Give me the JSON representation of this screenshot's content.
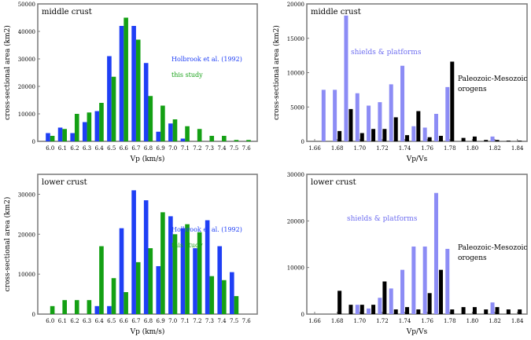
{
  "chart_data": [
    {
      "type": "bar",
      "panel_title": "middle crust",
      "xlabel": "Vp (km/s)",
      "ylabel": "cross-sectional area (km2)",
      "ylim": [
        0,
        50000
      ],
      "yticks": [
        "0",
        "10000",
        "20000",
        "30000",
        "40000",
        "50000"
      ],
      "categories": [
        "6.0",
        "6.1",
        "6.2",
        "6.3",
        "6.4",
        "6.5",
        "6.6",
        "6.7",
        "6.8",
        "6.9",
        "7.0",
        "7.1",
        "7.2",
        "7.3",
        "7.4",
        "7.5",
        "7.6"
      ],
      "series": [
        {
          "name": "Holbrook et al. (1992)",
          "color": "#1f3ff5",
          "values": [
            3000,
            5000,
            3000,
            7000,
            11000,
            31000,
            42000,
            42000,
            28500,
            3500,
            6500,
            1000,
            0,
            0,
            0,
            0,
            0
          ]
        },
        {
          "name": "this study",
          "color": "#14a014",
          "values": [
            2000,
            4500,
            10000,
            10500,
            14000,
            23500,
            45000,
            37000,
            16500,
            13000,
            8000,
            5500,
            4500,
            2000,
            2000,
            500,
            500
          ]
        }
      ]
    },
    {
      "type": "bar",
      "panel_title": "middle crust",
      "xlabel": "Vp/Vs",
      "ylabel": "cross-sectional area (km2)",
      "ylim": [
        0,
        20000
      ],
      "yticks": [
        "0",
        "5000",
        "10000",
        "15000",
        "20000"
      ],
      "xtick_labels": [
        "1.66",
        "1.68",
        "1.70",
        "1.72",
        "1.74",
        "1.76",
        "1.78",
        "1.80",
        "1.82",
        "1.84"
      ],
      "xrange": [
        1.66,
        1.85
      ],
      "annotations": [
        "shields & platforms",
        "Paleozoic-Mesozoic",
        "orogens"
      ],
      "series": [
        {
          "name": "shields & platforms",
          "color": "#8c8cf5",
          "x": [
            1.67,
            1.68,
            1.69,
            1.7,
            1.71,
            1.72,
            1.73,
            1.74,
            1.75,
            1.76,
            1.77,
            1.78,
            1.79,
            1.8,
            1.81,
            1.82,
            1.83,
            1.84
          ],
          "values": [
            7500,
            7500,
            18300,
            7000,
            5200,
            5700,
            8300,
            11000,
            2200,
            2000,
            4000,
            7900,
            0,
            0,
            0,
            700,
            0,
            0
          ]
        },
        {
          "name": "Paleozoic-Mesozoic orogens",
          "color": "#000000",
          "x": [
            1.67,
            1.68,
            1.69,
            1.7,
            1.71,
            1.72,
            1.73,
            1.74,
            1.75,
            1.76,
            1.77,
            1.78,
            1.79,
            1.8,
            1.81,
            1.82,
            1.83,
            1.84
          ],
          "values": [
            0,
            1500,
            4700,
            1200,
            1800,
            1800,
            3500,
            900,
            4400,
            600,
            800,
            11600,
            500,
            700,
            200,
            200,
            100,
            100
          ]
        }
      ]
    },
    {
      "type": "bar",
      "panel_title": "lower crust",
      "xlabel": "Vp (km/s)",
      "ylabel": "cross-sectional area (km2)",
      "ylim": [
        0,
        35000
      ],
      "yticks": [
        "0",
        "10000",
        "20000",
        "30000"
      ],
      "categories": [
        "6.0",
        "6.1",
        "6.2",
        "6.3",
        "6.4",
        "6.5",
        "6.6",
        "6.7",
        "6.8",
        "6.9",
        "7.0",
        "7.1",
        "7.2",
        "7.3",
        "7.4",
        "7.5",
        "7.6"
      ],
      "series": [
        {
          "name": "Holbrook et al. (1992)",
          "color": "#1f3ff5",
          "values": [
            0,
            0,
            0,
            0,
            2000,
            2000,
            21500,
            31000,
            28500,
            12000,
            24500,
            21500,
            16500,
            23500,
            17000,
            10500,
            0
          ]
        },
        {
          "name": "this study",
          "color": "#14a014",
          "values": [
            2000,
            3500,
            3500,
            3500,
            17000,
            9000,
            5500,
            13000,
            16500,
            25500,
            20000,
            22500,
            20500,
            9500,
            8500,
            4500,
            0
          ]
        }
      ]
    },
    {
      "type": "bar",
      "panel_title": "lower crust",
      "xlabel": "Vp/Vs",
      "ylabel": "",
      "ylim": [
        0,
        30000
      ],
      "yticks": [
        "0",
        "10000",
        "20000",
        "30000"
      ],
      "xtick_labels": [
        "1.66",
        "1.68",
        "1.70",
        "1.72",
        "1.74",
        "1.76",
        "1.78",
        "1.80",
        "1.82",
        "1.84"
      ],
      "xrange": [
        1.66,
        1.85
      ],
      "annotations": [
        "shields & platforms",
        "Paleozoic-Mesozoic",
        "orogens"
      ],
      "series": [
        {
          "name": "shields & platforms",
          "color": "#8c8cf5",
          "x": [
            1.67,
            1.68,
            1.69,
            1.7,
            1.71,
            1.72,
            1.73,
            1.74,
            1.75,
            1.76,
            1.77,
            1.78,
            1.79,
            1.8,
            1.81,
            1.82,
            1.83,
            1.84
          ],
          "values": [
            0,
            0,
            0,
            2000,
            1200,
            3500,
            5500,
            9500,
            14500,
            14500,
            26000,
            14000,
            0,
            0,
            0,
            2500,
            0,
            0
          ]
        },
        {
          "name": "Paleozoic-Mesozoic orogens",
          "color": "#000000",
          "x": [
            1.67,
            1.68,
            1.69,
            1.7,
            1.71,
            1.72,
            1.73,
            1.74,
            1.75,
            1.76,
            1.77,
            1.78,
            1.79,
            1.8,
            1.81,
            1.82,
            1.83,
            1.84
          ],
          "values": [
            0,
            5000,
            2000,
            2000,
            2000,
            7000,
            1000,
            1500,
            1000,
            4500,
            9500,
            1000,
            1500,
            1500,
            1000,
            1500,
            1000,
            1000
          ]
        }
      ]
    }
  ]
}
